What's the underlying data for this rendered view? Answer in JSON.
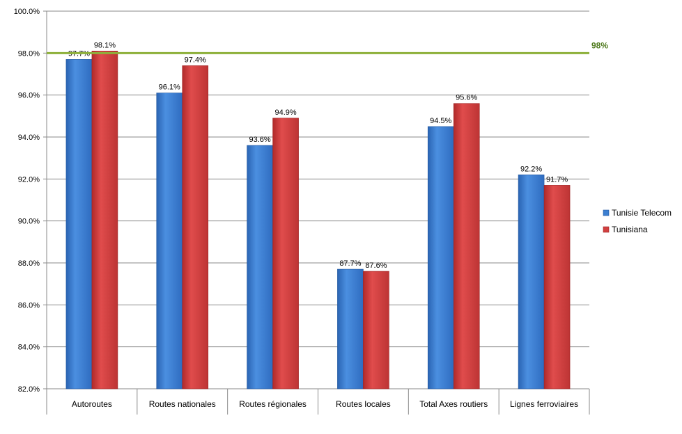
{
  "colors": {
    "series": [
      "#3C7FD1",
      "#D24040"
    ],
    "reference_line": "#8DB03A",
    "reference_label": "#4F7A1E",
    "grid": "#8a8a8a"
  },
  "chart_data": {
    "type": "bar",
    "categories": [
      "Autoroutes",
      "Routes nationales",
      "Routes régionales",
      "Routes locales",
      "Total Axes routiers",
      "Lignes ferroviaires"
    ],
    "series": [
      {
        "name": "Tunisie Telecom",
        "values": [
          97.7,
          96.1,
          93.6,
          87.7,
          94.5,
          92.2
        ],
        "labels": [
          "97.7%",
          "96.1%",
          "93.6%",
          "87.7%",
          "94.5%",
          "92.2%"
        ]
      },
      {
        "name": "Tunisiana",
        "values": [
          98.1,
          97.4,
          94.9,
          87.6,
          95.6,
          91.7
        ],
        "labels": [
          "98.1%",
          "97.4%",
          "94.9%",
          "87.6%",
          "95.6%",
          "91.7%"
        ]
      }
    ],
    "ylim": [
      82,
      100
    ],
    "yticks": [
      82,
      84,
      86,
      88,
      90,
      92,
      94,
      96,
      98,
      100
    ],
    "ytick_labels": [
      "82.0%",
      "84.0%",
      "86.0%",
      "88.0%",
      "90.0%",
      "92.0%",
      "94.0%",
      "96.0%",
      "98.0%",
      "100.0%"
    ],
    "reference_line": {
      "value": 98,
      "label": "98%"
    },
    "grid": true,
    "legend_position": "right"
  }
}
